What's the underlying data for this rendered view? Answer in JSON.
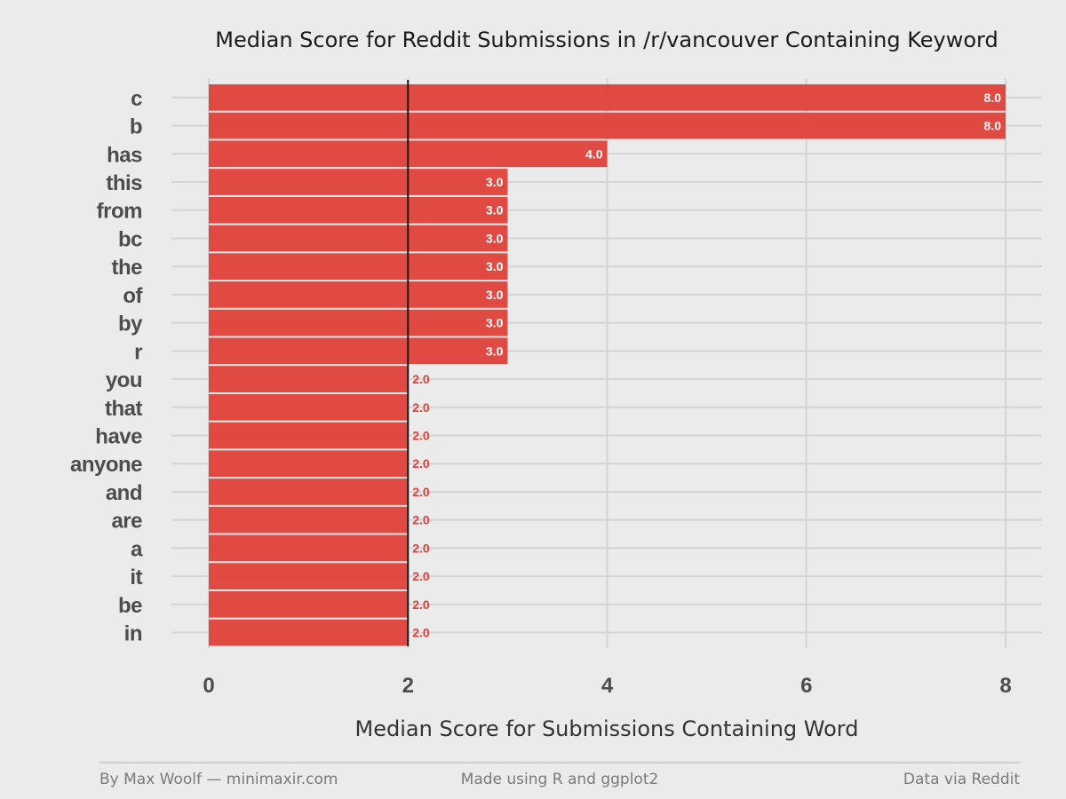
{
  "chart_data": {
    "type": "bar",
    "orientation": "horizontal",
    "title": "Median Score for Reddit Submissions in /r/vancouver Containing Keyword",
    "xlabel": "Median Score for Submissions Containing Word",
    "ylabel": "",
    "xlim": [
      0,
      8
    ],
    "x_ticks": [
      "0",
      "2",
      "4",
      "6",
      "8"
    ],
    "reference_line": 2,
    "grid": true,
    "bar_color": "#e0403a",
    "categories": [
      "c",
      "b",
      "has",
      "this",
      "from",
      "bc",
      "the",
      "of",
      "by",
      "r",
      "you",
      "that",
      "have",
      "anyone",
      "and",
      "are",
      "a",
      "it",
      "be",
      "in"
    ],
    "values": [
      8,
      8,
      4,
      3,
      3,
      3,
      3,
      3,
      3,
      3,
      2,
      2,
      2,
      2,
      2,
      2,
      2,
      2,
      2,
      2
    ],
    "value_labels": [
      "8.0",
      "8.0",
      "4.0",
      "3.0",
      "3.0",
      "3.0",
      "3.0",
      "3.0",
      "3.0",
      "3.0",
      "2.0",
      "2.0",
      "2.0",
      "2.0",
      "2.0",
      "2.0",
      "2.0",
      "2.0",
      "2.0",
      "2.0"
    ]
  },
  "footer": {
    "left": "By Max Woolf — minimaxir.com",
    "center": "Made using R and ggplot2",
    "right": "Data via Reddit"
  }
}
